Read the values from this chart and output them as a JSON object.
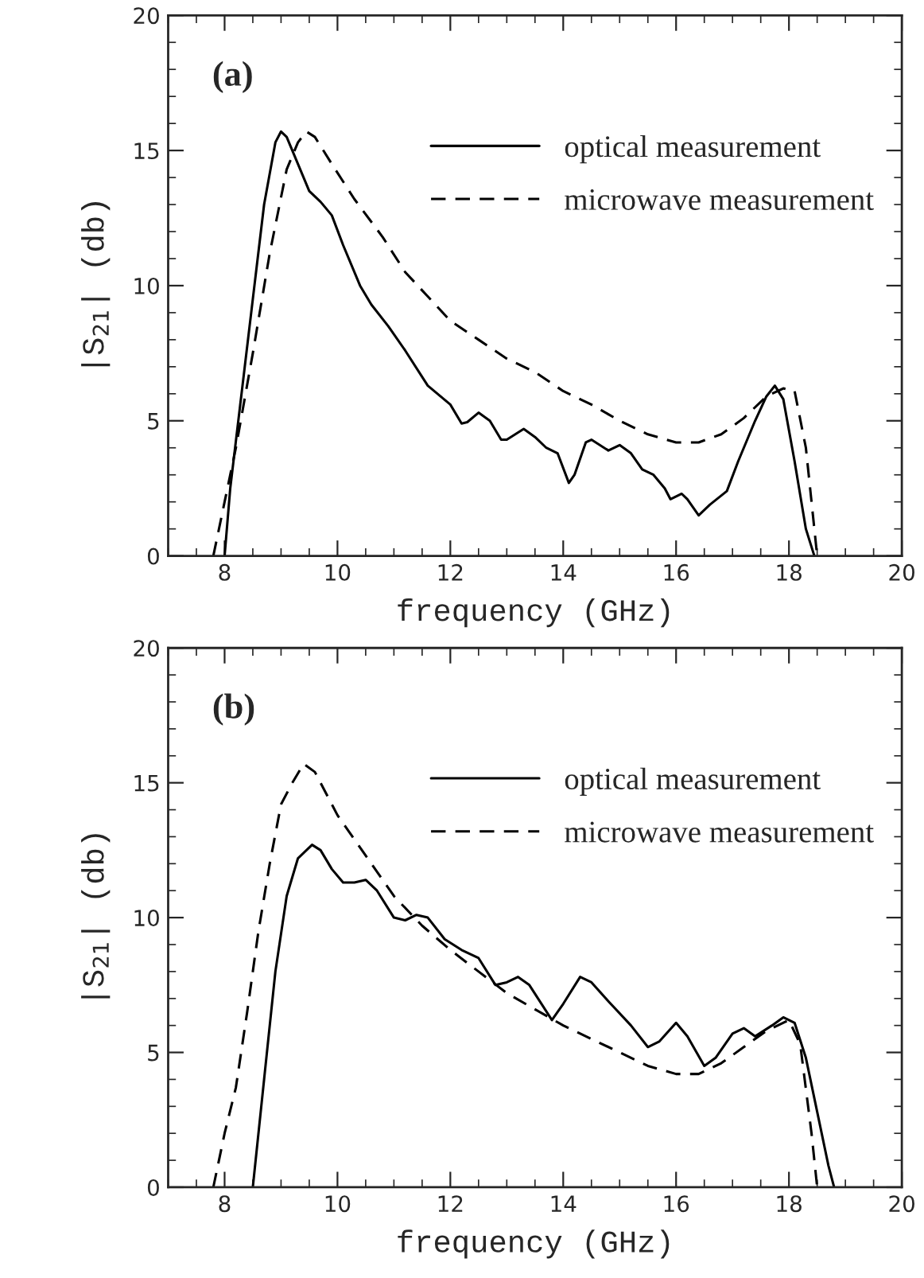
{
  "chart_data": [
    {
      "type": "line",
      "xlabel": "frequency (GHz)",
      "ylabel": "|S$_{21}$| (db)",
      "annotations": [
        "(a)"
      ],
      "xlim": [
        7,
        20
      ],
      "ylim": [
        0,
        20
      ],
      "xticks": [
        8,
        10,
        12,
        14,
        16,
        18,
        20
      ],
      "yticks": [
        0,
        5,
        10,
        15,
        20
      ],
      "legend": "top right",
      "series": [
        {
          "name": "optical measurement",
          "color": "#000000",
          "line_style": "solid",
          "x": [
            8.0,
            8.1,
            8.3,
            8.5,
            8.7,
            8.9,
            9.0,
            9.1,
            9.3,
            9.5,
            9.7,
            9.9,
            10.1,
            10.4,
            10.6,
            10.9,
            11.2,
            11.6,
            12.0,
            12.2,
            12.3,
            12.5,
            12.7,
            12.9,
            13.0,
            13.3,
            13.5,
            13.7,
            13.9,
            14.1,
            14.2,
            14.4,
            14.5,
            14.8,
            15.0,
            15.2,
            15.4,
            15.6,
            15.8,
            15.9,
            16.1,
            16.2,
            16.4,
            16.6,
            16.9,
            17.1,
            17.4,
            17.6,
            17.75,
            17.9,
            18.1,
            18.3,
            18.45
          ],
          "values": [
            0,
            2.5,
            6,
            9.5,
            13,
            15.3,
            15.7,
            15.5,
            14.5,
            13.5,
            13.1,
            12.6,
            11.5,
            10,
            9.3,
            8.5,
            7.6,
            6.3,
            5.6,
            4.9,
            4.95,
            5.3,
            5.0,
            4.3,
            4.3,
            4.7,
            4.4,
            4.0,
            3.8,
            2.7,
            3.0,
            4.2,
            4.3,
            3.9,
            4.1,
            3.8,
            3.2,
            3.0,
            2.5,
            2.1,
            2.3,
            2.1,
            1.5,
            1.9,
            2.4,
            3.5,
            5.0,
            5.9,
            6.3,
            5.8,
            3.5,
            1.0,
            0
          ]
        },
        {
          "name": "microwave measurement",
          "color": "#000000",
          "line_style": "dashed",
          "x": [
            7.8,
            8.0,
            8.2,
            8.5,
            8.8,
            9.1,
            9.3,
            9.45,
            9.6,
            9.9,
            10.3,
            10.8,
            11.2,
            11.6,
            12.0,
            12.5,
            13.0,
            13.5,
            14.0,
            14.5,
            15.0,
            15.5,
            16.0,
            16.4,
            16.8,
            17.2,
            17.6,
            17.9,
            18.1,
            18.3,
            18.5
          ],
          "values": [
            0,
            2.0,
            4.0,
            7.5,
            11.2,
            14.3,
            15.3,
            15.7,
            15.5,
            14.5,
            13.2,
            11.8,
            10.5,
            9.6,
            8.7,
            8.0,
            7.3,
            6.8,
            6.1,
            5.6,
            5.0,
            4.5,
            4.2,
            4.2,
            4.5,
            5.1,
            5.9,
            6.2,
            6.1,
            4.0,
            0
          ]
        }
      ]
    },
    {
      "type": "line",
      "xlabel": "frequency (GHz)",
      "ylabel": "|S$_{21}$| (db)",
      "annotations": [
        "(b)"
      ],
      "xlim": [
        7,
        20
      ],
      "ylim": [
        0,
        20
      ],
      "xticks": [
        8,
        10,
        12,
        14,
        16,
        18,
        20
      ],
      "yticks": [
        0,
        5,
        10,
        15,
        20
      ],
      "legend": "top right",
      "series": [
        {
          "name": "optical measurement",
          "color": "#000000",
          "line_style": "solid",
          "x": [
            8.5,
            8.7,
            8.9,
            9.1,
            9.3,
            9.55,
            9.7,
            9.9,
            10.1,
            10.3,
            10.5,
            10.7,
            11.0,
            11.2,
            11.4,
            11.6,
            11.9,
            12.2,
            12.5,
            12.8,
            13.0,
            13.2,
            13.4,
            13.8,
            14.0,
            14.3,
            14.5,
            14.8,
            15.2,
            15.5,
            15.7,
            16.0,
            16.2,
            16.5,
            16.7,
            17.0,
            17.2,
            17.4,
            17.7,
            17.9,
            18.1,
            18.3,
            18.5,
            18.7,
            18.8
          ],
          "values": [
            0,
            4,
            8,
            10.8,
            12.2,
            12.7,
            12.5,
            11.8,
            11.3,
            11.3,
            11.4,
            11.0,
            10.0,
            9.9,
            10.1,
            10.0,
            9.2,
            8.8,
            8.5,
            7.5,
            7.6,
            7.8,
            7.5,
            6.2,
            6.8,
            7.8,
            7.6,
            6.9,
            6.0,
            5.2,
            5.4,
            6.1,
            5.6,
            4.5,
            4.8,
            5.7,
            5.9,
            5.6,
            6.0,
            6.3,
            6.1,
            4.8,
            2.8,
            0.8,
            0
          ]
        },
        {
          "name": "microwave measurement",
          "color": "#000000",
          "line_style": "dashed",
          "x": [
            7.8,
            8.0,
            8.2,
            8.4,
            8.6,
            8.8,
            9.0,
            9.2,
            9.4,
            9.6,
            10.0,
            10.5,
            11.0,
            11.5,
            12.0,
            12.5,
            13.0,
            13.5,
            14.0,
            14.5,
            15.0,
            15.5,
            16.0,
            16.4,
            16.8,
            17.2,
            17.6,
            18.0,
            18.2,
            18.4,
            18.5
          ],
          "values": [
            0,
            2.0,
            3.7,
            6.5,
            9.5,
            12,
            14.2,
            15.0,
            15.7,
            15.4,
            13.8,
            12.3,
            10.8,
            9.7,
            8.8,
            8.0,
            7.2,
            6.6,
            6.0,
            5.5,
            5.0,
            4.5,
            4.2,
            4.2,
            4.6,
            5.2,
            5.8,
            6.2,
            5.3,
            2.0,
            0
          ]
        }
      ]
    }
  ]
}
